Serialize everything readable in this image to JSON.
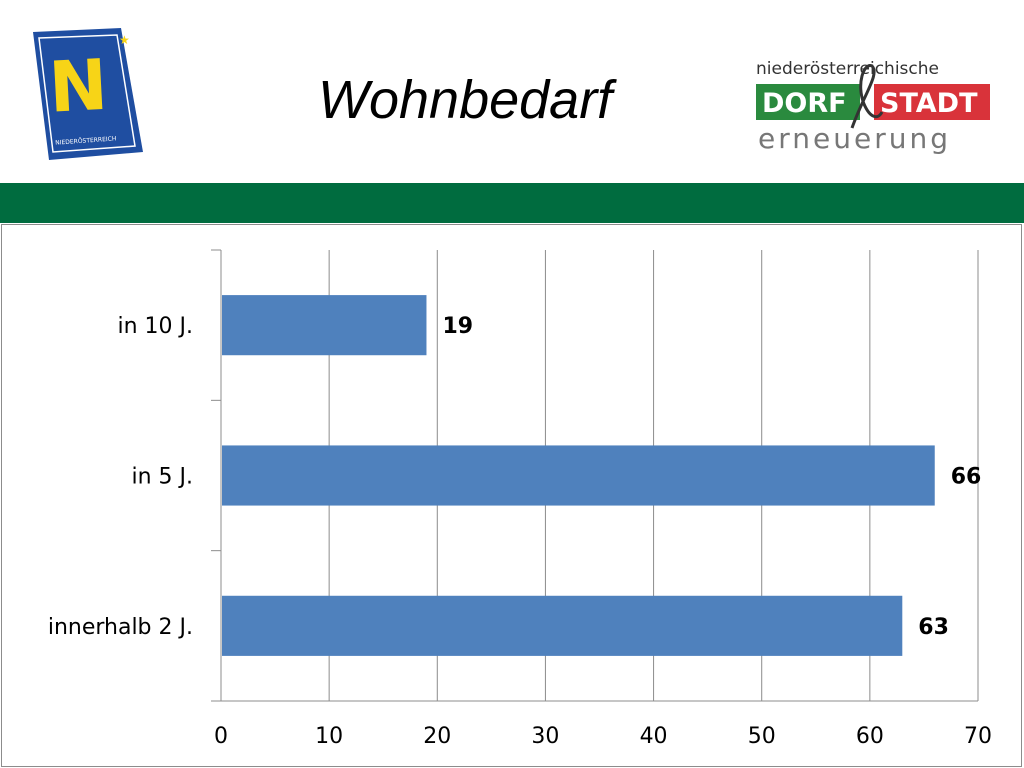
{
  "header": {
    "title": "Wohnbedarf",
    "band_color": "#006c3f",
    "left_logo": {
      "icon": "noe-logo-icon",
      "letter": "N",
      "caption": "NIEDERÖSTERREICH",
      "color_bg": "#1f4ea1",
      "color_letter": "#f7d417"
    },
    "right_logo": {
      "icon": "dorf-stadt-logo-icon",
      "top": "niederösterreichische",
      "left_word": "DORF",
      "right_word": "STADT",
      "bottom": "erneuerung",
      "red": "#d9333a",
      "green": "#2a8a3e"
    }
  },
  "chart_data": {
    "type": "bar",
    "orientation": "horizontal",
    "categories": [
      "in 10 J.",
      "in 5 J.",
      "innerhalb 2 J."
    ],
    "values": [
      19,
      66,
      63
    ],
    "data_labels": [
      "19",
      "66",
      "63"
    ],
    "xlim": [
      0,
      70
    ],
    "xticks": [
      0,
      10,
      20,
      30,
      40,
      50,
      60,
      70
    ],
    "xtick_labels": [
      "0",
      "10",
      "20",
      "30",
      "40",
      "50",
      "60",
      "70"
    ],
    "grid": true,
    "legend": "none",
    "bar_color": "#4f81bd",
    "title": "",
    "xlabel": "",
    "ylabel": ""
  }
}
